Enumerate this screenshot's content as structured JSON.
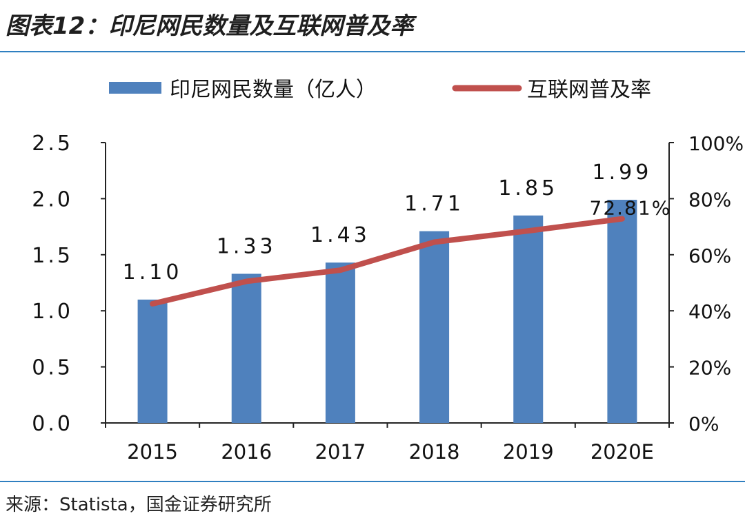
{
  "header": {
    "title": "图表12：印尼网民数量及互联网普及率"
  },
  "footer": {
    "source": "来源：Statista，国金证券研究所"
  },
  "colors": {
    "bar": "#4f81bd",
    "line": "#c0504d",
    "rule": "#2f7fc0"
  },
  "chart_data": {
    "type": "bar",
    "categories": [
      "2015",
      "2016",
      "2017",
      "2018",
      "2019",
      "2020E"
    ],
    "series": [
      {
        "name": "印尼网民数量（亿人）",
        "type": "bar",
        "axis": "left",
        "values": [
          1.1,
          1.33,
          1.43,
          1.71,
          1.85,
          1.99
        ],
        "labels": [
          "1.10",
          "1.33",
          "1.43",
          "1.71",
          "1.85",
          "1.99"
        ]
      },
      {
        "name": "互联网普及率",
        "type": "line",
        "axis": "right",
        "values": [
          0.425,
          0.505,
          0.545,
          0.645,
          0.685,
          0.7281
        ],
        "end_label": "72.81%"
      }
    ],
    "y_left": {
      "lim": [
        0,
        2.5
      ],
      "ticks": [
        "0.0",
        "0.5",
        "1.0",
        "1.5",
        "2.0",
        "2.5"
      ]
    },
    "y_right": {
      "lim": [
        0,
        1.0
      ],
      "ticks": [
        "0%",
        "20%",
        "40%",
        "60%",
        "80%",
        "100%"
      ]
    },
    "legend": "top",
    "grid": false
  }
}
